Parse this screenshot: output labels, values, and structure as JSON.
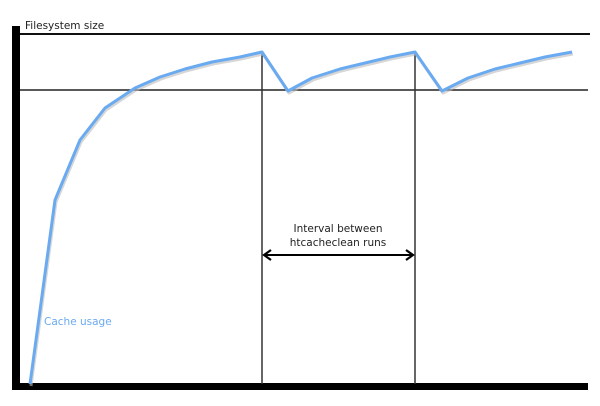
{
  "labels": {
    "y_axis": "Filesystem size",
    "series": "Cache usage",
    "interval_line1": "Interval between",
    "interval_line2": "htcacheclean runs"
  },
  "colors": {
    "curve": "#6aaaf0",
    "axis": "#000000",
    "lines": "#222222"
  }
}
